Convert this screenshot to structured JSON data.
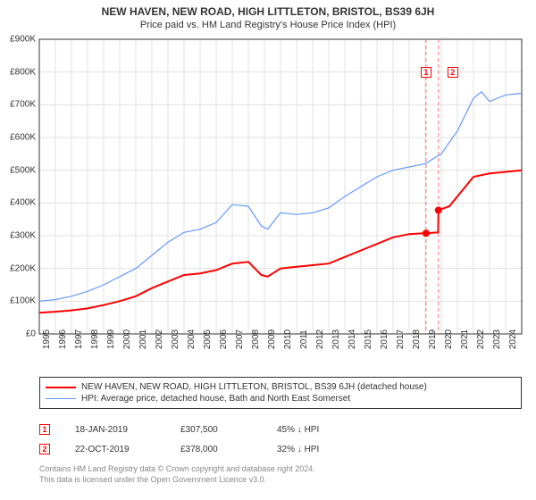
{
  "title": "NEW HAVEN, NEW ROAD, HIGH LITTLETON, BRISTOL, BS39 6JH",
  "subtitle": "Price paid vs. HM Land Registry's House Price Index (HPI)",
  "chart": {
    "type": "line",
    "background_color": "#ffffff",
    "grid_color": "#e0e0e0",
    "axis_color": "#333333",
    "xlim": [
      1995,
      2025
    ],
    "ylim": [
      0,
      900000
    ],
    "ytick_step": 100000,
    "ytick_prefix": "£",
    "ytick_suffix": "K",
    "ytick_divisor": 1000,
    "xticks": [
      1995,
      1996,
      1997,
      1998,
      1999,
      2000,
      2001,
      2002,
      2003,
      2004,
      2005,
      2006,
      2007,
      2008,
      2009,
      2010,
      2011,
      2012,
      2013,
      2014,
      2015,
      2016,
      2017,
      2018,
      2019,
      2020,
      2021,
      2022,
      2023,
      2024
    ],
    "x_label_fontsize": 10,
    "y_label_fontsize": 10,
    "title_fontsize": 12,
    "subtitle_fontsize": 11,
    "series": [
      {
        "name": "property",
        "label": "NEW HAVEN, NEW ROAD, HIGH LITTLETON, BRISTOL, BS39 6JH (detached house)",
        "color": "#ff0000",
        "line_width": 2,
        "points_x": [
          1995,
          1996,
          1997,
          1998,
          1999,
          2000,
          2001,
          2002,
          2003,
          2004,
          2005,
          2006,
          2007,
          2008,
          2008.8,
          2009.2,
          2010,
          2011,
          2012,
          2013,
          2014,
          2015,
          2016,
          2017,
          2018,
          2019,
          2019.05,
          2019.8,
          2019.82,
          2020.5,
          2021,
          2022,
          2023,
          2024,
          2025
        ],
        "points_y": [
          65000,
          68000,
          72000,
          78000,
          88000,
          100000,
          115000,
          140000,
          160000,
          180000,
          185000,
          195000,
          215000,
          220000,
          180000,
          175000,
          200000,
          205000,
          210000,
          215000,
          235000,
          255000,
          275000,
          295000,
          305000,
          308000,
          307500,
          310000,
          378000,
          390000,
          420000,
          480000,
          490000,
          495000,
          500000
        ]
      },
      {
        "name": "hpi",
        "label": "HPI: Average price, detached house, Bath and North East Somerset",
        "color": "#6699ff",
        "line_width": 1.2,
        "points_x": [
          1995,
          1996,
          1997,
          1998,
          1999,
          2000,
          2001,
          2002,
          2003,
          2004,
          2005,
          2006,
          2007,
          2008,
          2008.8,
          2009.2,
          2010,
          2011,
          2012,
          2013,
          2014,
          2015,
          2016,
          2017,
          2018,
          2019,
          2020,
          2021,
          2022,
          2022.5,
          2023,
          2024,
          2025
        ],
        "points_y": [
          100000,
          105000,
          115000,
          130000,
          150000,
          175000,
          200000,
          240000,
          280000,
          310000,
          320000,
          340000,
          395000,
          390000,
          330000,
          320000,
          370000,
          365000,
          370000,
          385000,
          420000,
          450000,
          480000,
          500000,
          510000,
          520000,
          550000,
          620000,
          720000,
          740000,
          710000,
          730000,
          735000
        ]
      }
    ],
    "vlines": [
      {
        "x": 2019.05,
        "color": "#ff7070",
        "dash": "4,3",
        "marker_label": "1"
      },
      {
        "x": 2019.82,
        "color": "#ff7070",
        "dash": "4,3",
        "marker_label": "2"
      }
    ],
    "sale_points": [
      {
        "x": 2019.05,
        "y": 307500,
        "color": "#ff0000",
        "radius": 4
      },
      {
        "x": 2019.82,
        "y": 378000,
        "color": "#ff0000",
        "radius": 4
      }
    ],
    "marker_box_top_y": 800000
  },
  "legend": {
    "items": [
      {
        "key": "property",
        "color": "#ff0000",
        "width": 2
      },
      {
        "key": "hpi",
        "color": "#6699ff",
        "width": 1.2
      }
    ]
  },
  "sales": [
    {
      "marker": "1",
      "date": "18-JAN-2019",
      "price": "£307,500",
      "pct": "45% ↓ HPI"
    },
    {
      "marker": "2",
      "date": "22-OCT-2019",
      "price": "£378,000",
      "pct": "32% ↓ HPI"
    }
  ],
  "footer": {
    "line1": "Contains HM Land Registry data © Crown copyright and database right 2024.",
    "line2": "This data is licensed under the Open Government Licence v3.0."
  }
}
